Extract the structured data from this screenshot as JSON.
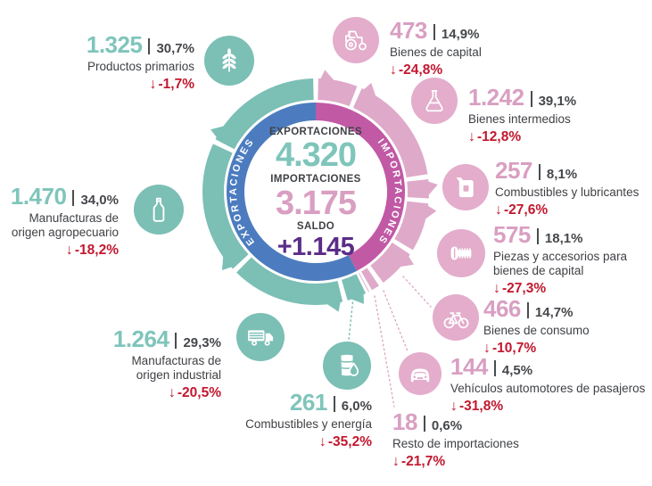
{
  "colors": {
    "teal": "#7bbfb5",
    "teal_number": "#7fc5bb",
    "pink_petal": "#dfa9c9",
    "pink_circle": "#e3adcb",
    "pink_number": "#d99fc2",
    "blue_ring": "#4c7cbf",
    "magenta_ring": "#c159a5",
    "purple": "#5b2d87",
    "red": "#c2182f",
    "text_dark": "#3f4145"
  },
  "chart_data": {
    "type": "pie",
    "variant": "donut-infographic",
    "arrow": "↓",
    "center": {
      "exports_label": "EXPORTACIONES",
      "exports_value": "4.320",
      "imports_label": "IMPORTACIONES",
      "imports_value": "3.175",
      "balance_label": "SALDO",
      "balance_value": "+1.145"
    },
    "ring_labels": {
      "exports": "EXPORTACIONES",
      "imports": "IMPORTACIONES"
    },
    "exports_total": 4320,
    "imports_total": 3175,
    "balance": 1145,
    "exports_categories": [
      {
        "name": "Productos primarios",
        "value": "1.325",
        "value_num": 1325,
        "share_pct": 30.7,
        "share_label": "30,7%",
        "change_label": "-1,7%",
        "icon": "wheat"
      },
      {
        "name": "Manufacturas de origen agropecuario",
        "value": "1.470",
        "value_num": 1470,
        "share_pct": 34.0,
        "share_label": "34,0%",
        "change_label": "-18,2%",
        "icon": "bottle"
      },
      {
        "name": "Manufacturas de origen industrial",
        "value": "1.264",
        "value_num": 1264,
        "share_pct": 29.3,
        "share_label": "29,3%",
        "change_label": "-20,5%",
        "icon": "truck"
      },
      {
        "name": "Combustibles y energía",
        "value": "261",
        "value_num": 261,
        "share_pct": 6.0,
        "share_label": "6,0%",
        "change_label": "-35,2%",
        "icon": "barrel"
      }
    ],
    "imports_categories": [
      {
        "name": "Bienes de capital",
        "value": "473",
        "value_num": 473,
        "share_pct": 14.9,
        "share_label": "14,9%",
        "change_label": "-24,8%",
        "icon": "tractor"
      },
      {
        "name": "Bienes intermedios",
        "value": "1.242",
        "value_num": 1242,
        "share_pct": 39.1,
        "share_label": "39,1%",
        "change_label": "-12,8%",
        "icon": "flask"
      },
      {
        "name": "Combustibles y lubricantes",
        "value": "257",
        "value_num": 257,
        "share_pct": 8.1,
        "share_label": "8,1%",
        "change_label": "-27,6%",
        "icon": "jerrycan"
      },
      {
        "name": "Piezas y accesorios para bienes de capital",
        "value": "575",
        "value_num": 575,
        "share_pct": 18.1,
        "share_label": "18,1%",
        "change_label": "-27,3%",
        "icon": "screw"
      },
      {
        "name": "Bienes de consumo",
        "value": "466",
        "value_num": 466,
        "share_pct": 14.7,
        "share_label": "14,7%",
        "change_label": "-10,7%",
        "icon": "bicycle"
      },
      {
        "name": "Vehículos automotores de pasajeros",
        "value": "144",
        "value_num": 144,
        "share_pct": 4.5,
        "share_label": "4,5%",
        "change_label": "-31,8%",
        "icon": "car"
      },
      {
        "name": "Resto de importaciones",
        "value": "18",
        "value_num": 18,
        "share_pct": 0.6,
        "share_label": "0,6%",
        "change_label": "-21,7%",
        "icon": null
      }
    ]
  }
}
